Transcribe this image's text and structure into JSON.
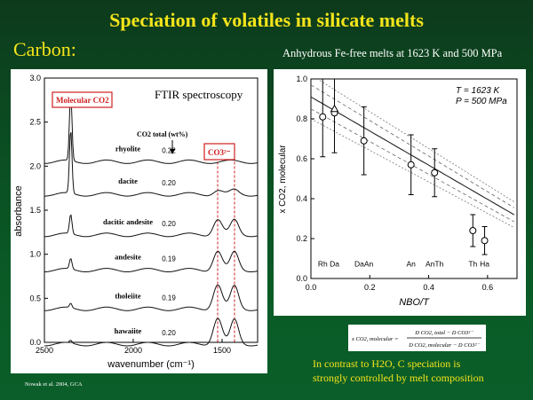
{
  "slide": {
    "title": "Speciation of volatiles in silicate melts",
    "section": "Carbon:",
    "subtitle": "Anhydrous Fe-free melts at 1623 K and 500 MPa",
    "caption_line1": "In contrast to H2O, C speciation is",
    "caption_line2": "strongly controlled by melt composition",
    "citation": "Nowak et al. 2004, GCA",
    "colors": {
      "title": "#f4e41a",
      "background": "#0b5e29",
      "highlight": "#e02020"
    }
  },
  "chart_data": [
    {
      "type": "line",
      "title": "FTIR spectroscopy",
      "xlabel": "wavenumber (cm⁻¹)",
      "ylabel": "absorbance",
      "xlim": [
        2500,
        1300
      ],
      "ylim": [
        0,
        3.0
      ],
      "x_ticks": [
        2500,
        2000,
        1500
      ],
      "y_ticks": [
        0.0,
        0.5,
        1.0,
        1.5,
        2.0,
        2.5,
        3.0
      ],
      "annotations": {
        "molecular": "Molecular CO2",
        "carbonate": "CO3²⁻",
        "co2_total_header": "CO2 total (wt%)"
      },
      "series": [
        {
          "name": "rhyolite",
          "co2_total": "0.22",
          "baseline": 2.05,
          "peak_height": 0.78,
          "carbonate_height": 0.0
        },
        {
          "name": "dacite",
          "co2_total": "0.20",
          "baseline": 1.68,
          "peak_height": 0.72,
          "carbonate_height": 0.05
        },
        {
          "name": "dacitic andesite",
          "co2_total": "0.20",
          "baseline": 1.22,
          "peak_height": 0.22,
          "carbonate_height": 0.18
        },
        {
          "name": "andesite",
          "co2_total": "0.19",
          "baseline": 0.82,
          "peak_height": 0.12,
          "carbonate_height": 0.22
        },
        {
          "name": "tholeiite",
          "co2_total": "0.19",
          "baseline": 0.38,
          "peak_height": 0.05,
          "carbonate_height": 0.28
        },
        {
          "name": "hawaiite",
          "co2_total": "0.20",
          "baseline": -0.02,
          "peak_height": 0.03,
          "carbonate_height": 0.3
        }
      ]
    },
    {
      "type": "scatter",
      "xlabel": "NBO/T",
      "ylabel": "x CO2, molecular",
      "xlim": [
        0.0,
        0.7
      ],
      "ylim": [
        0.0,
        1.0
      ],
      "x_ticks": [
        0.0,
        0.2,
        0.4,
        0.6
      ],
      "y_ticks": [
        0.0,
        0.2,
        0.4,
        0.6,
        0.8,
        1.0
      ],
      "legend_text": [
        "T = 1623 K",
        "P = 500 MPa"
      ],
      "points": [
        {
          "label": "Rh",
          "x": 0.04,
          "y": 0.81,
          "err": 0.2,
          "marker": "circle"
        },
        {
          "label": "Da",
          "x": 0.08,
          "y": 0.83,
          "err": 0.2,
          "marker": "circle"
        },
        {
          "label": "Da",
          "x": 0.08,
          "y": 0.85,
          "err": 0.0,
          "marker": "triangle"
        },
        {
          "label": "DaAn",
          "x": 0.18,
          "y": 0.69,
          "err": 0.17,
          "marker": "circle"
        },
        {
          "label": "An",
          "x": 0.34,
          "y": 0.57,
          "err": 0.15,
          "marker": "circle"
        },
        {
          "label": "AnTh",
          "x": 0.42,
          "y": 0.53,
          "err": 0.12,
          "marker": "circle"
        },
        {
          "label": "Th",
          "x": 0.55,
          "y": 0.24,
          "err": 0.08,
          "marker": "circle"
        },
        {
          "label": "Ha",
          "x": 0.59,
          "y": 0.19,
          "err": 0.07,
          "marker": "circle"
        }
      ],
      "fit": {
        "a": 0.91,
        "b": 0.94
      }
    }
  ],
  "equation": {
    "lhs": "x CO2, molecular =",
    "numerator": "D CO2, total − D CO3²⁻",
    "denominator": "D CO2, molecular − D CO3²⁻"
  }
}
